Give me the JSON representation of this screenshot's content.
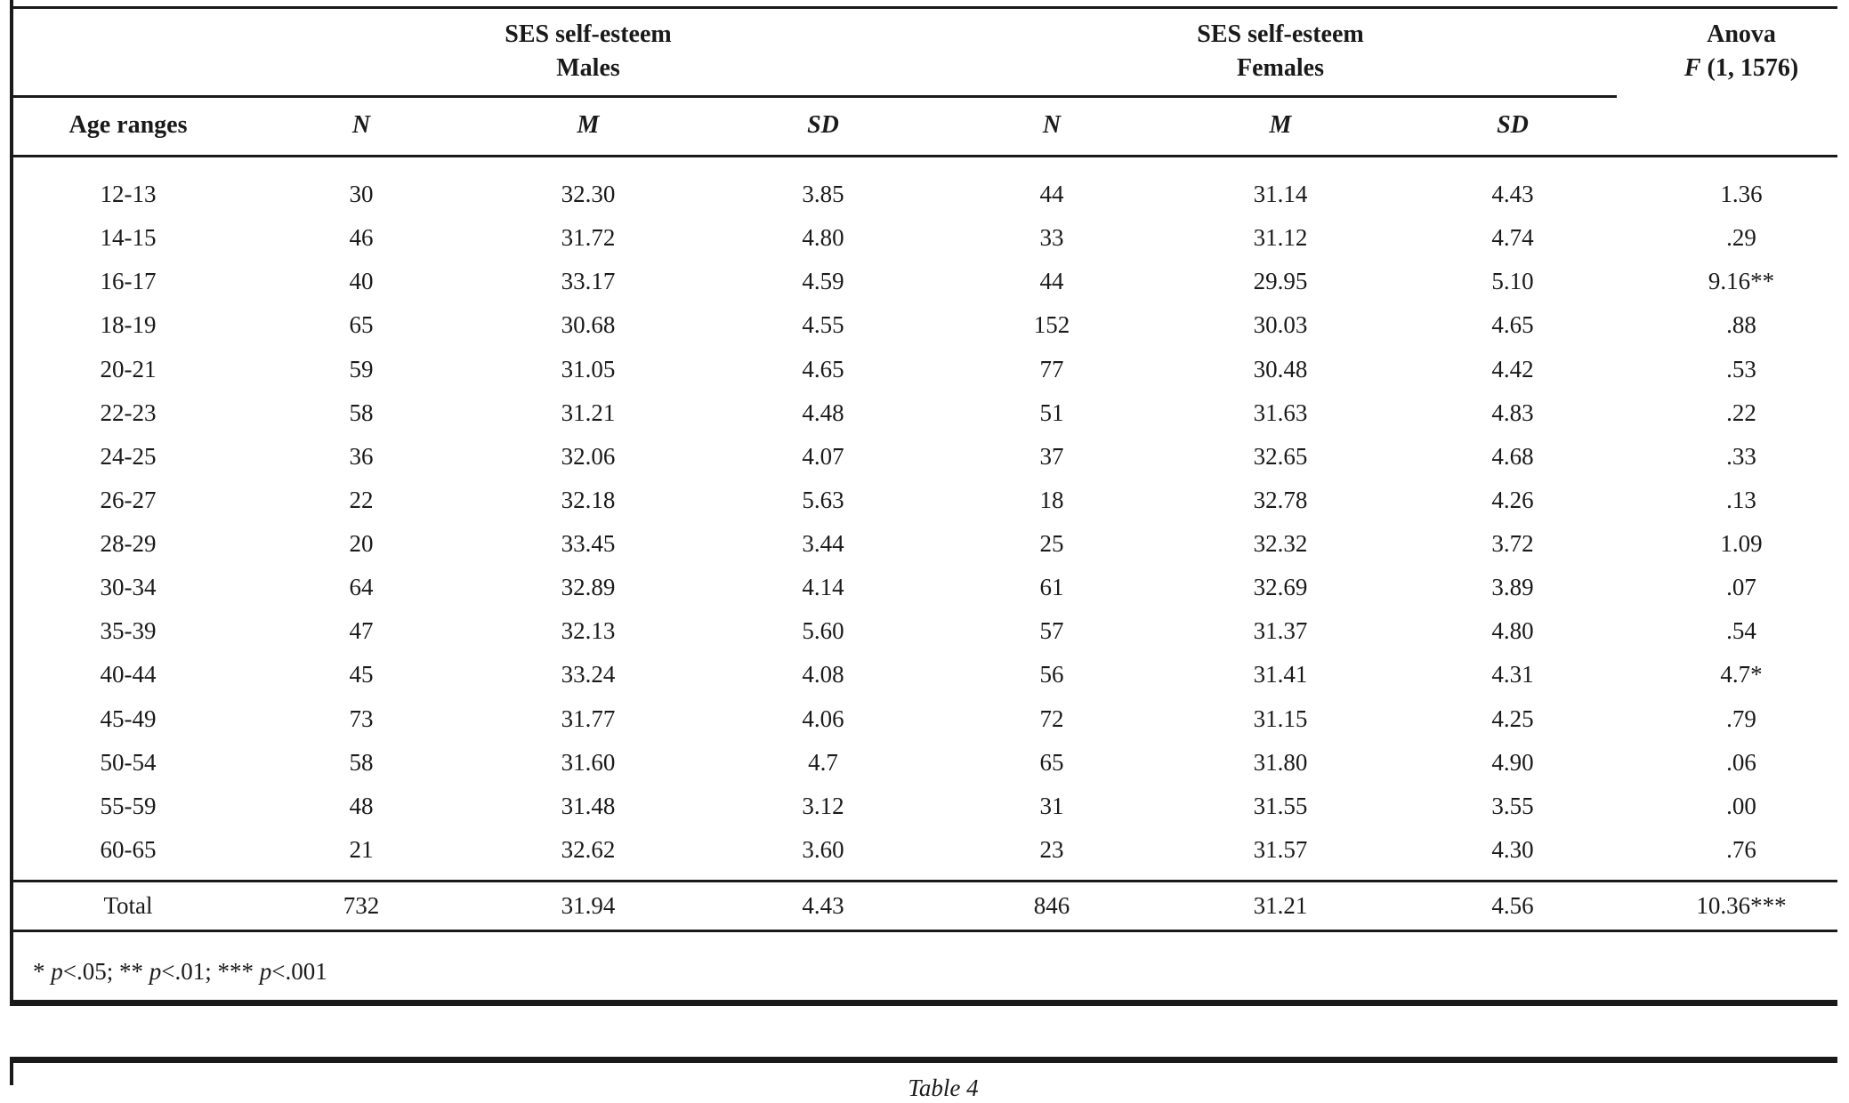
{
  "colors": {
    "ink": "#1a1a1a",
    "background": "#ffffff"
  },
  "table1": {
    "groups": {
      "males": {
        "line1": "SES self-esteem",
        "line2": "Males"
      },
      "females": {
        "line1": "SES self-esteem",
        "line2": "Females"
      },
      "anova": {
        "line1": "Anova",
        "f_symbol": "F",
        "f_args": " (1, 1576)"
      }
    },
    "columns": [
      "Age ranges",
      "N",
      "M",
      "SD",
      "N",
      "M",
      "SD"
    ],
    "rows": [
      [
        "12-13",
        "30",
        "32.30",
        "3.85",
        "44",
        "31.14",
        "4.43",
        "1.36"
      ],
      [
        "14-15",
        "46",
        "31.72",
        "4.80",
        "33",
        "31.12",
        "4.74",
        ".29"
      ],
      [
        "16-17",
        "40",
        "33.17",
        "4.59",
        "44",
        "29.95",
        "5.10",
        "9.16**"
      ],
      [
        "18-19",
        "65",
        "30.68",
        "4.55",
        "152",
        "30.03",
        "4.65",
        ".88"
      ],
      [
        "20-21",
        "59",
        "31.05",
        "4.65",
        "77",
        "30.48",
        "4.42",
        ".53"
      ],
      [
        "22-23",
        "58",
        "31.21",
        "4.48",
        "51",
        "31.63",
        "4.83",
        ".22"
      ],
      [
        "24-25",
        "36",
        "32.06",
        "4.07",
        "37",
        "32.65",
        "4.68",
        ".33"
      ],
      [
        "26-27",
        "22",
        "32.18",
        "5.63",
        "18",
        "32.78",
        "4.26",
        ".13"
      ],
      [
        "28-29",
        "20",
        "33.45",
        "3.44",
        "25",
        "32.32",
        "3.72",
        "1.09"
      ],
      [
        "30-34",
        "64",
        "32.89",
        "4.14",
        "61",
        "32.69",
        "3.89",
        ".07"
      ],
      [
        "35-39",
        "47",
        "32.13",
        "5.60",
        "57",
        "31.37",
        "4.80",
        ".54"
      ],
      [
        "40-44",
        "45",
        "33.24",
        "4.08",
        "56",
        "31.41",
        "4.31",
        "4.7*"
      ],
      [
        "45-49",
        "73",
        "31.77",
        "4.06",
        "72",
        "31.15",
        "4.25",
        ".79"
      ],
      [
        "50-54",
        "58",
        "31.60",
        "4.7",
        "65",
        "31.80",
        "4.90",
        ".06"
      ],
      [
        "55-59",
        "48",
        "31.48",
        "3.12",
        "31",
        "31.55",
        "3.55",
        ".00"
      ],
      [
        "60-65",
        "21",
        "32.62",
        "3.60",
        "23",
        "31.57",
        "4.30",
        ".76"
      ]
    ],
    "total_row": [
      "Total",
      "732",
      "31.94",
      "4.43",
      "846",
      "31.21",
      "4.56",
      "10.36***"
    ],
    "footnote_parts": [
      {
        "text": "* ",
        "italic": false
      },
      {
        "text": "p",
        "italic": true
      },
      {
        "text": "<.05; ** ",
        "italic": false
      },
      {
        "text": "p",
        "italic": true
      },
      {
        "text": "<.01; *** ",
        "italic": false
      },
      {
        "text": "p",
        "italic": true
      },
      {
        "text": "<.001",
        "italic": false
      }
    ]
  },
  "table2": {
    "caption": "Table 4"
  }
}
